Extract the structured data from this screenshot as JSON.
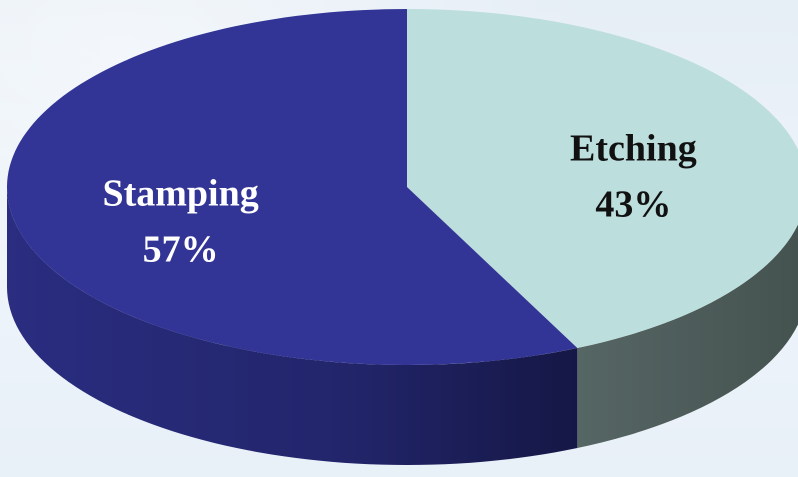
{
  "chart_data": {
    "type": "pie",
    "slices": [
      {
        "label": "Etching",
        "value": 43,
        "pct_label": "43%",
        "color": "#bcdedd",
        "side_color": "#4a5a58",
        "text_color": "#111111"
      },
      {
        "label": "Stamping",
        "value": 57,
        "pct_label": "57%",
        "color": "#333596",
        "side_color": "#252870",
        "text_color": "#ffffff"
      }
    ],
    "title": "",
    "legend": "none",
    "style": "3d-tilted"
  }
}
